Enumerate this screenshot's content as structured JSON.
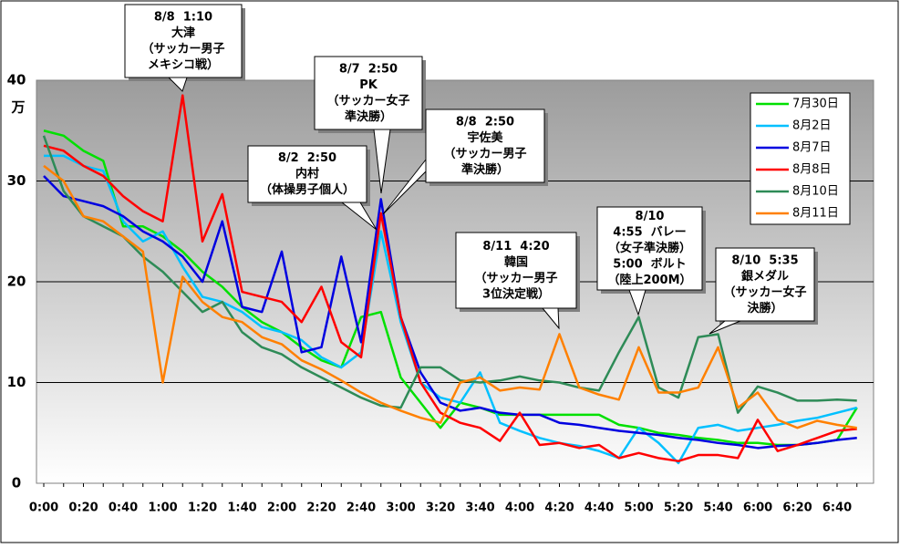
{
  "chart_data": {
    "type": "line",
    "y_unit": "万",
    "categories": [
      "0:00",
      null,
      "0:20",
      null,
      "0:40",
      null,
      "1:00",
      null,
      "1:20",
      null,
      "1:40",
      null,
      "2:00",
      null,
      "2:20",
      null,
      "2:40",
      null,
      "3:00",
      null,
      "3:20",
      null,
      "3:40",
      null,
      "4:00",
      null,
      "4:20",
      null,
      "4:40",
      null,
      "5:00",
      null,
      "5:20",
      null,
      "5:40",
      null,
      "6:00",
      null,
      "6:20",
      null,
      "6:40",
      null
    ],
    "ylim": [
      0,
      40
    ],
    "yticks": [
      0,
      10,
      20,
      30,
      40
    ],
    "grid": true,
    "legend": "top-right",
    "series": [
      {
        "name": "7月30日",
        "color": "#00e000",
        "values": [
          35,
          34.5,
          33,
          32,
          25.5,
          25.5,
          24.5,
          23,
          21,
          19.5,
          17.5,
          16,
          15,
          13.5,
          12.2,
          11.5,
          16.5,
          17,
          10.5,
          8,
          5.5,
          8,
          7.5,
          6.8,
          6.8,
          6.8,
          6.8,
          6.8,
          6.8,
          5.8,
          5.5,
          5,
          4.8,
          4.5,
          4.3,
          4,
          4,
          3.8,
          3.8,
          4,
          4.3,
          7.5
        ]
      },
      {
        "name": "8月2日",
        "color": "#00c0ff",
        "values": [
          32.5,
          32.5,
          31.5,
          31,
          26,
          24,
          25,
          21.5,
          18.5,
          18,
          17,
          15.5,
          15,
          14.2,
          12.5,
          11.5,
          13,
          25,
          16,
          10,
          8.5,
          8,
          11,
          6,
          5.2,
          4.5,
          4,
          3.7,
          3.2,
          2.5,
          5.5,
          4,
          2,
          5.5,
          5.8,
          5.2,
          5.5,
          5.8,
          6.2,
          6.5,
          7,
          7.5
        ]
      },
      {
        "name": "8月7日",
        "color": "#0000e0",
        "values": [
          30.5,
          28.5,
          28,
          27.5,
          26.5,
          25,
          24,
          22.5,
          20,
          26,
          17.5,
          17,
          23,
          13,
          13.5,
          22.5,
          14,
          28.2,
          16.5,
          11,
          8,
          7.2,
          7.5,
          7,
          6.8,
          6.8,
          6,
          5.8,
          5.5,
          5.2,
          5,
          4.8,
          4.5,
          4.3,
          4,
          3.8,
          3.5,
          3.7,
          3.8,
          4,
          4.3,
          4.5
        ]
      },
      {
        "name": "8月8日",
        "color": "#ff0000",
        "values": [
          33.5,
          33,
          31.5,
          30.5,
          28.5,
          27,
          26,
          38.5,
          24,
          28.7,
          19,
          18.5,
          18,
          16,
          19.5,
          14,
          12.5,
          26.8,
          16.5,
          10,
          7,
          6,
          5.5,
          4.2,
          7,
          3.8,
          4,
          3.5,
          3.8,
          2.5,
          3,
          2.5,
          2.2,
          2.8,
          2.8,
          2.5,
          6.3,
          3.2,
          3.8,
          4.5,
          5.2,
          5.4
        ]
      },
      {
        "name": "8月10日",
        "color": "#2e8b57",
        "values": [
          34.5,
          29,
          26.5,
          25.5,
          24.5,
          22.5,
          21,
          19,
          17,
          18,
          15,
          13.5,
          12.8,
          11.5,
          10.5,
          9.5,
          8.5,
          7.7,
          7.5,
          11.5,
          11.5,
          10.2,
          10,
          10.2,
          10.6,
          10.2,
          10,
          9.5,
          9.2,
          13,
          16.5,
          9.5,
          8.5,
          14.5,
          14.8,
          7,
          9.6,
          9,
          8.2,
          8.2,
          8.3,
          8.2
        ]
      },
      {
        "name": "8月11日",
        "color": "#ff8000",
        "values": [
          31.5,
          30,
          26.5,
          26,
          24.5,
          23,
          10,
          20.5,
          18,
          16.5,
          16,
          14.5,
          13.8,
          12.2,
          11.3,
          10.2,
          9,
          8,
          7.2,
          6.5,
          6,
          10,
          10.5,
          9.2,
          9.5,
          9.3,
          14.8,
          9.5,
          8.8,
          8.3,
          13.5,
          9,
          9,
          9.5,
          13.5,
          7.5,
          9,
          6.3,
          5.5,
          6.2,
          5.8,
          5.5
        ]
      }
    ],
    "annotations": [
      {
        "lines": [
          "8/8  1:10",
          "大津",
          "（サッカー男子",
          "メキシコ戦）"
        ]
      },
      {
        "lines": [
          "8/7  2:50",
          "PK",
          "（サッカー女子",
          "準決勝）"
        ]
      },
      {
        "lines": [
          "8/2  2:50",
          "内村",
          "（体操男子個人）"
        ]
      },
      {
        "lines": [
          "8/8  2:50",
          "宇佐美",
          "（サッカー男子",
          "準決勝）"
        ]
      },
      {
        "lines": [
          "8/11  4:20",
          "韓国",
          "（サッカー男子",
          "3位決定戦）"
        ]
      },
      {
        "lines": [
          "8/10",
          "4:55  バレー",
          "（女子準決勝）",
          "5:00  ボルト",
          "（陸上200M）"
        ]
      },
      {
        "lines": [
          "8/10  5:35",
          "銀メダル",
          "（サッカー女子",
          "決勝）"
        ]
      }
    ]
  }
}
